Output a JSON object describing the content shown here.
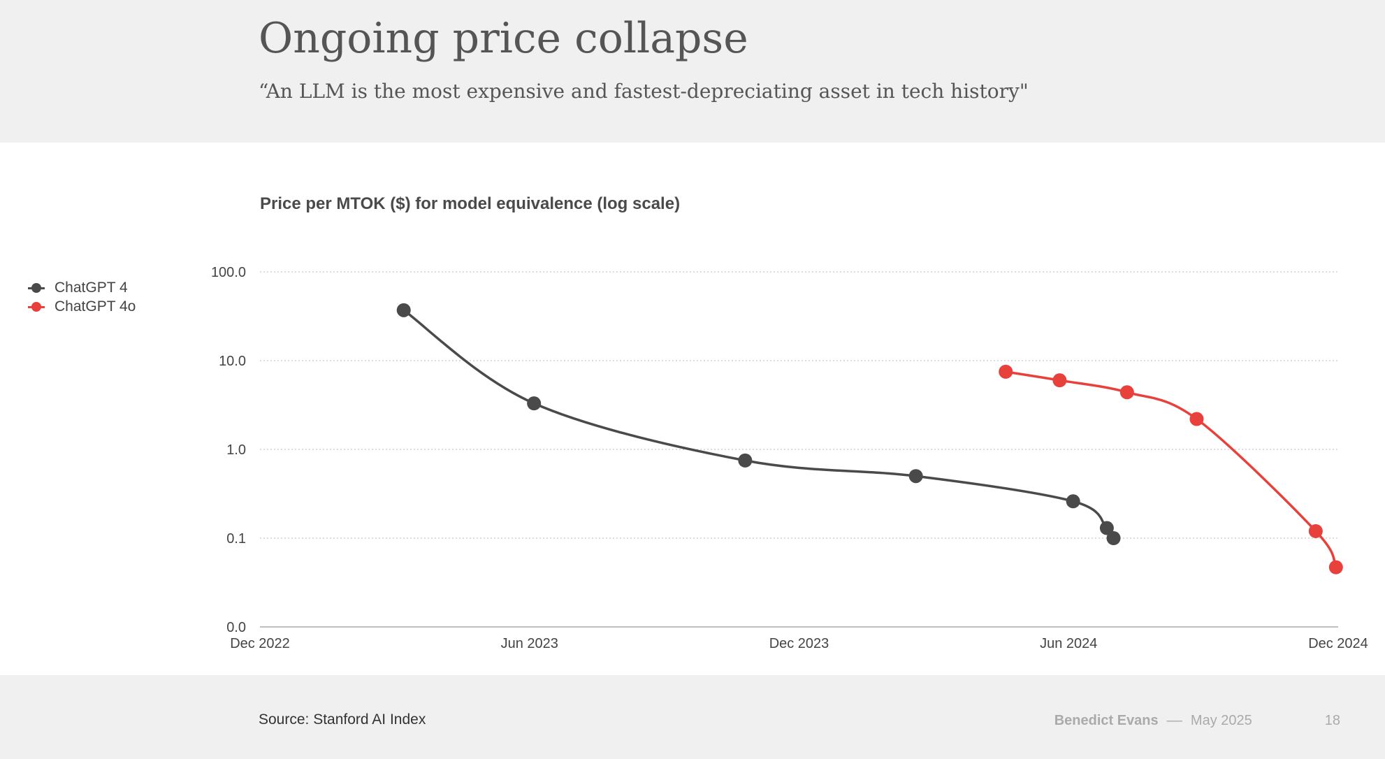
{
  "slide": {
    "title": "Ongoing price collapse",
    "subtitle": "“An LLM is the most expensive and fastest-depreciating asset in tech history\"",
    "source": "Source: Stanford AI Index",
    "author": "Benedict Evans",
    "separator": "––",
    "date": "May 2025",
    "page_number": "18"
  },
  "colors": {
    "chatgpt4": "#4a4a4a",
    "chatgpt4o": "#e8403a",
    "grid": "#bbbbbb",
    "axis": "#aaaaaa"
  },
  "chart_data": {
    "type": "line",
    "title": "Price per MTOK ($) for model equivalence (log scale)",
    "xlabel": "",
    "ylabel": "",
    "y_scale": "log",
    "y_ticks": [
      {
        "value": 0.01,
        "label": "0.0"
      },
      {
        "value": 0.1,
        "label": "0.1"
      },
      {
        "value": 1,
        "label": "1.0"
      },
      {
        "value": 10,
        "label": "10.0"
      },
      {
        "value": 100,
        "label": "100.0"
      }
    ],
    "x_ticks": [
      {
        "value": 0,
        "label": "Dec 2022"
      },
      {
        "value": 6,
        "label": "Jun 2023"
      },
      {
        "value": 12,
        "label": "Dec 2023"
      },
      {
        "value": 18,
        "label": "Jun 2024"
      },
      {
        "value": 24,
        "label": "Dec 2024"
      }
    ],
    "x_unit": "months since Dec 2022",
    "xlim": [
      0,
      24
    ],
    "ylim": [
      0.01,
      100
    ],
    "grid": true,
    "legend_position": "left",
    "series": [
      {
        "name": "ChatGPT 4",
        "color_key": "chatgpt4",
        "points": [
          {
            "x": 3.2,
            "y": 37
          },
          {
            "x": 6.1,
            "y": 3.3
          },
          {
            "x": 10.8,
            "y": 0.75
          },
          {
            "x": 14.6,
            "y": 0.5
          },
          {
            "x": 18.1,
            "y": 0.26
          },
          {
            "x": 18.85,
            "y": 0.13
          },
          {
            "x": 19.0,
            "y": 0.1
          }
        ]
      },
      {
        "name": "ChatGPT 4o",
        "color_key": "chatgpt4o",
        "points": [
          {
            "x": 16.6,
            "y": 7.5
          },
          {
            "x": 17.8,
            "y": 6.0
          },
          {
            "x": 19.3,
            "y": 4.4
          },
          {
            "x": 20.85,
            "y": 2.2
          },
          {
            "x": 23.5,
            "y": 0.12
          },
          {
            "x": 23.95,
            "y": 0.047
          }
        ]
      }
    ]
  }
}
